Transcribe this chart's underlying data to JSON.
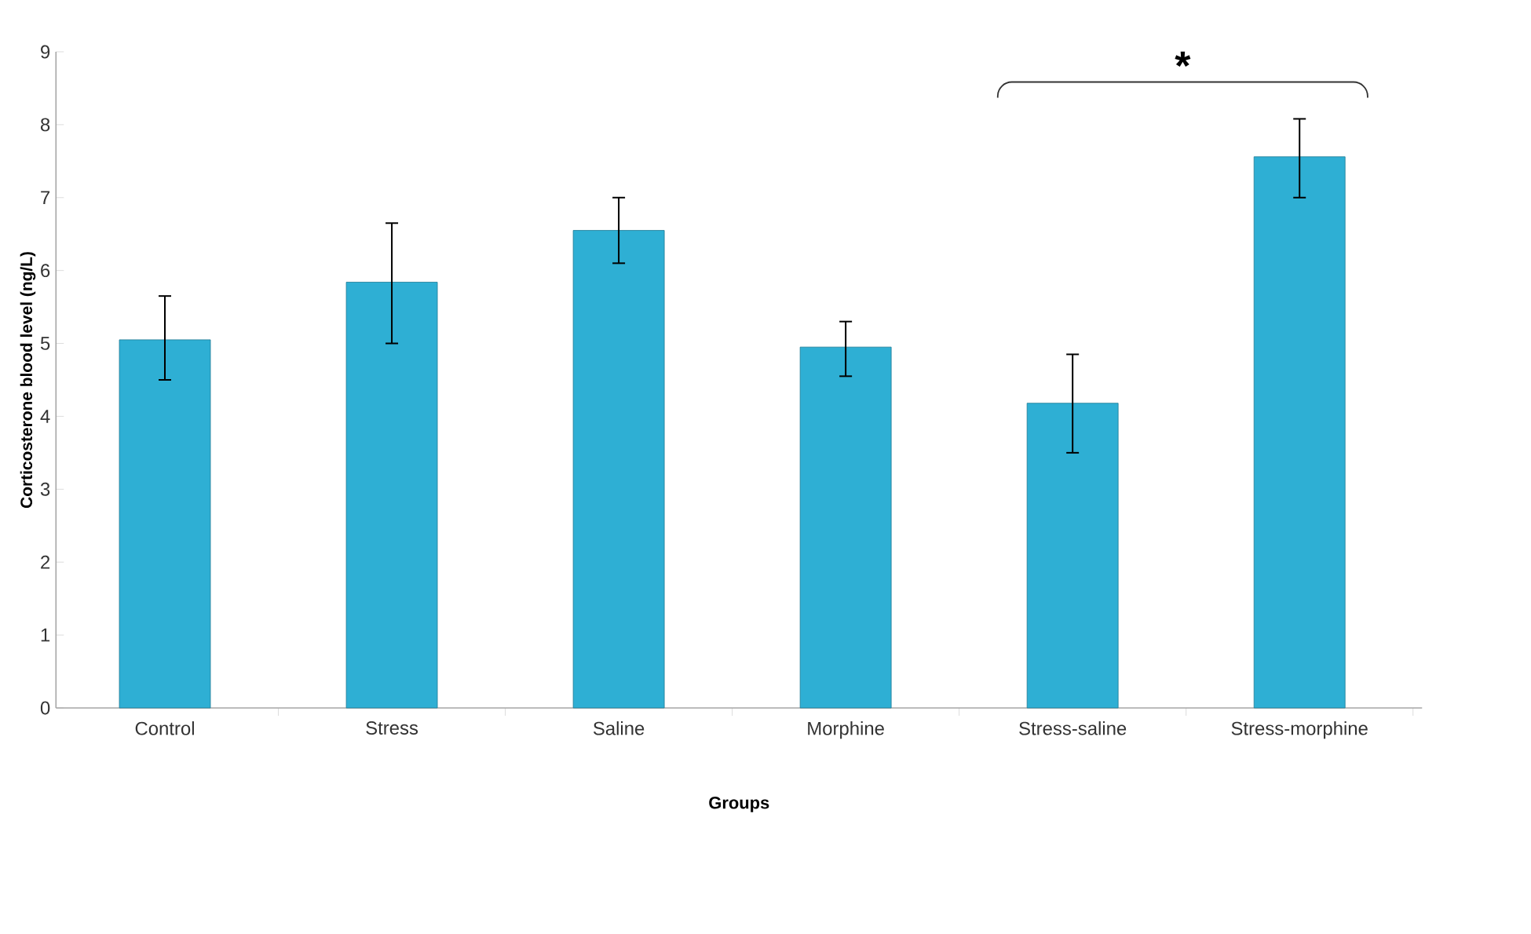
{
  "chart_data": {
    "type": "bar",
    "xlabel": "Groups",
    "ylabel": "Corticosterone blood level (ng/L)",
    "categories": [
      "Control",
      "Stress",
      "Saline",
      "Morphine",
      "Stress-saline",
      "Stress-morphine"
    ],
    "values": [
      5.05,
      5.84,
      6.55,
      4.95,
      4.18,
      7.56
    ],
    "errors": [
      [
        4.5,
        5.65
      ],
      [
        5.0,
        6.65
      ],
      [
        6.1,
        7.0
      ],
      [
        4.55,
        5.3
      ],
      [
        3.5,
        4.85
      ],
      [
        7.0,
        8.08
      ]
    ],
    "color": "#2eafd4",
    "ylim": [
      0,
      9
    ],
    "yticks": [
      0,
      1,
      2,
      3,
      4,
      5,
      6,
      7,
      8,
      9
    ],
    "grid": false,
    "annotations": [
      "*"
    ]
  }
}
